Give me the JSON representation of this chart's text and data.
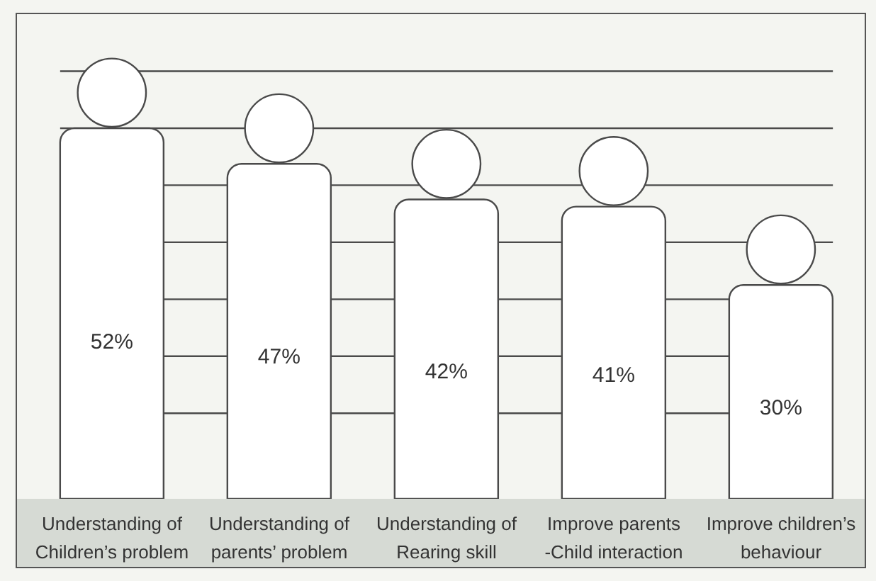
{
  "chart_data": {
    "type": "bar",
    "categories": [
      "Understanding of Children’s problem",
      "Understanding of parents’ problem",
      "Understanding of Rearing skill",
      "Improve parents -Child interaction",
      "Improve children’s behaviour"
    ],
    "values": [
      52,
      47,
      42,
      41,
      30
    ],
    "value_labels": [
      "52%",
      "47%",
      "42%",
      "41%",
      "30%"
    ],
    "color": "#ffffff",
    "ylim": [
      0,
      68
    ],
    "yticks": [
      {
        "value": 12,
        "label": null
      },
      {
        "value": 20,
        "label": null
      },
      {
        "value": 28,
        "label": null
      },
      {
        "value": 36,
        "label": null
      },
      {
        "value": 44,
        "label": null
      },
      {
        "value": 52,
        "label": null
      },
      {
        "value": 60,
        "label": null
      }
    ],
    "grid": "y",
    "tick_labels": "x"
  }
}
